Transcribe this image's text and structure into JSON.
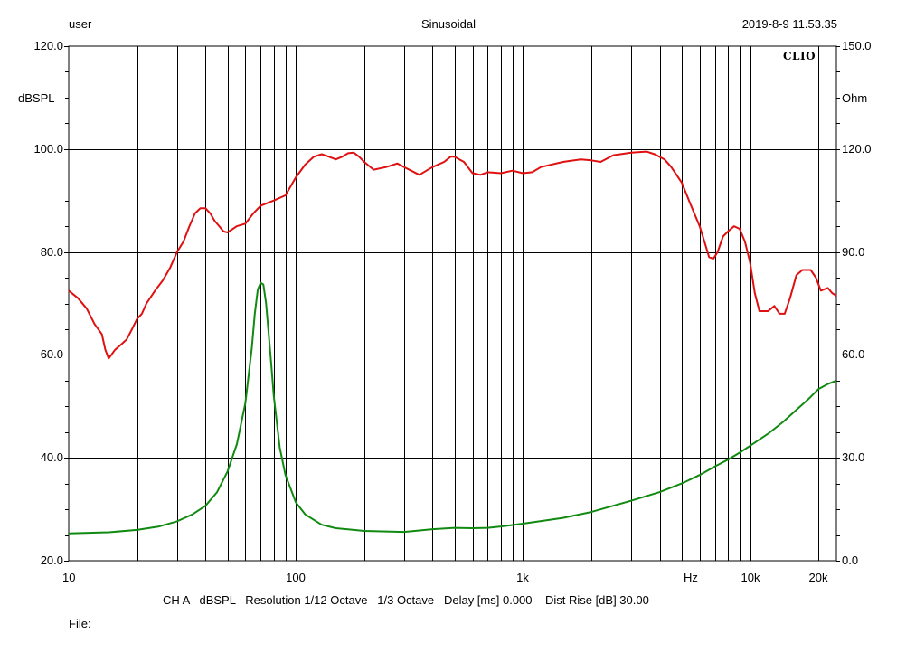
{
  "header": {
    "user": "user",
    "mode": "Sinusoidal",
    "timestamp": "2019-8-9 11.53.35"
  },
  "logo": "CLIO",
  "footer": {
    "settings": "CH A   dBSPL   Resolution 1/12 Octave   1/3 Octave   Delay [ms] 0.000    Dist Rise [dB] 30.00",
    "file_label": "File:"
  },
  "chart_data": {
    "type": "line",
    "title": "",
    "x_scale": "log",
    "xlim": [
      10,
      24000
    ],
    "x_ticks": [
      {
        "value": 10,
        "label": "10"
      },
      {
        "value": 100,
        "label": "100"
      },
      {
        "value": 1000,
        "label": "1k"
      },
      {
        "value": 10000,
        "label": "10k"
      },
      {
        "value": 20000,
        "label": "20k"
      }
    ],
    "x_unit_label": "Hz",
    "y_left": {
      "label": "dBSPL",
      "lim": [
        20,
        120
      ],
      "ticks": [
        "20.0",
        "40.0",
        "60.0",
        "80.0",
        "100.0",
        "120.0"
      ]
    },
    "y_right": {
      "label": "Ohm",
      "lim": [
        0,
        150
      ],
      "ticks": [
        "0.0",
        "30.0",
        "60.0",
        "90.0",
        "120.0",
        "150.0"
      ]
    },
    "grid": true,
    "series": [
      {
        "axis": "left",
        "color": "#e01010",
        "points": [
          [
            10,
            72.5
          ],
          [
            11,
            71
          ],
          [
            12,
            69
          ],
          [
            13,
            66
          ],
          [
            14,
            64
          ],
          [
            14.5,
            61
          ],
          [
            15,
            59.3
          ],
          [
            16,
            61
          ],
          [
            17,
            62
          ],
          [
            18,
            63
          ],
          [
            19,
            65
          ],
          [
            20,
            67
          ],
          [
            21,
            68
          ],
          [
            22,
            70
          ],
          [
            24,
            72.5
          ],
          [
            26,
            74.5
          ],
          [
            28,
            77
          ],
          [
            30,
            80
          ],
          [
            32,
            82
          ],
          [
            34,
            85
          ],
          [
            36,
            87.5
          ],
          [
            38,
            88.5
          ],
          [
            40,
            88.5
          ],
          [
            42,
            87.5
          ],
          [
            44,
            86
          ],
          [
            46,
            85
          ],
          [
            48,
            84
          ],
          [
            50,
            83.8
          ],
          [
            55,
            85
          ],
          [
            60,
            85.5
          ],
          [
            65,
            87.5
          ],
          [
            70,
            89
          ],
          [
            80,
            90
          ],
          [
            90,
            91
          ],
          [
            100,
            94.5
          ],
          [
            110,
            97
          ],
          [
            120,
            98.5
          ],
          [
            130,
            99
          ],
          [
            140,
            98.5
          ],
          [
            150,
            98
          ],
          [
            160,
            98.5
          ],
          [
            170,
            99.2
          ],
          [
            180,
            99.3
          ],
          [
            190,
            98.5
          ],
          [
            200,
            97.5
          ],
          [
            220,
            96
          ],
          [
            250,
            96.5
          ],
          [
            280,
            97.2
          ],
          [
            300,
            96.5
          ],
          [
            350,
            95
          ],
          [
            400,
            96.5
          ],
          [
            450,
            97.5
          ],
          [
            480,
            98.5
          ],
          [
            500,
            98.5
          ],
          [
            550,
            97.5
          ],
          [
            600,
            95.3
          ],
          [
            650,
            95
          ],
          [
            700,
            95.5
          ],
          [
            800,
            95.3
          ],
          [
            900,
            95.8
          ],
          [
            1000,
            95.3
          ],
          [
            1100,
            95.5
          ],
          [
            1200,
            96.5
          ],
          [
            1500,
            97.5
          ],
          [
            1800,
            98
          ],
          [
            2000,
            97.8
          ],
          [
            2200,
            97.5
          ],
          [
            2500,
            98.8
          ],
          [
            3000,
            99.3
          ],
          [
            3500,
            99.5
          ],
          [
            3800,
            99
          ],
          [
            4200,
            98
          ],
          [
            4500,
            96.5
          ],
          [
            5000,
            93.5
          ],
          [
            5500,
            89
          ],
          [
            6000,
            85
          ],
          [
            6300,
            82
          ],
          [
            6600,
            79
          ],
          [
            6900,
            78.7
          ],
          [
            7200,
            80
          ],
          [
            7600,
            83
          ],
          [
            8000,
            84
          ],
          [
            8500,
            85
          ],
          [
            9000,
            84.5
          ],
          [
            9500,
            82
          ],
          [
            10000,
            78
          ],
          [
            10500,
            72
          ],
          [
            11000,
            68.5
          ],
          [
            12000,
            68.5
          ],
          [
            12800,
            69.5
          ],
          [
            13500,
            68
          ],
          [
            14200,
            68
          ],
          [
            15000,
            71
          ],
          [
            16000,
            75.5
          ],
          [
            17000,
            76.5
          ],
          [
            18500,
            76.5
          ],
          [
            19500,
            75
          ],
          [
            20500,
            72.5
          ],
          [
            22000,
            73
          ],
          [
            23000,
            72
          ],
          [
            24000,
            71.5
          ]
        ]
      },
      {
        "axis": "right",
        "color": "#118a11",
        "points": [
          [
            10,
            8
          ],
          [
            15,
            8.3
          ],
          [
            20,
            9
          ],
          [
            25,
            10
          ],
          [
            30,
            11.5
          ],
          [
            35,
            13.5
          ],
          [
            40,
            16
          ],
          [
            45,
            20
          ],
          [
            50,
            26
          ],
          [
            55,
            34
          ],
          [
            60,
            46
          ],
          [
            64,
            62
          ],
          [
            66,
            72
          ],
          [
            68,
            79
          ],
          [
            70,
            81
          ],
          [
            72,
            80.5
          ],
          [
            74,
            75
          ],
          [
            76,
            66
          ],
          [
            78,
            57
          ],
          [
            80,
            48
          ],
          [
            85,
            33
          ],
          [
            90,
            25
          ],
          [
            100,
            17
          ],
          [
            110,
            13.5
          ],
          [
            130,
            10.5
          ],
          [
            150,
            9.5
          ],
          [
            200,
            8.7
          ],
          [
            300,
            8.4
          ],
          [
            400,
            9.2
          ],
          [
            500,
            9.6
          ],
          [
            600,
            9.5
          ],
          [
            700,
            9.6
          ],
          [
            800,
            10
          ],
          [
            1000,
            10.8
          ],
          [
            1500,
            12.5
          ],
          [
            2000,
            14.2
          ],
          [
            3000,
            17.5
          ],
          [
            4000,
            20
          ],
          [
            5000,
            22.5
          ],
          [
            6000,
            25
          ],
          [
            7000,
            27.5
          ],
          [
            8000,
            29.5
          ],
          [
            9000,
            31.5
          ],
          [
            10000,
            33.5
          ],
          [
            12000,
            37
          ],
          [
            14000,
            40.5
          ],
          [
            16000,
            44
          ],
          [
            18000,
            47
          ],
          [
            20000,
            50
          ],
          [
            22000,
            51.5
          ],
          [
            24000,
            52.5
          ]
        ]
      }
    ]
  }
}
